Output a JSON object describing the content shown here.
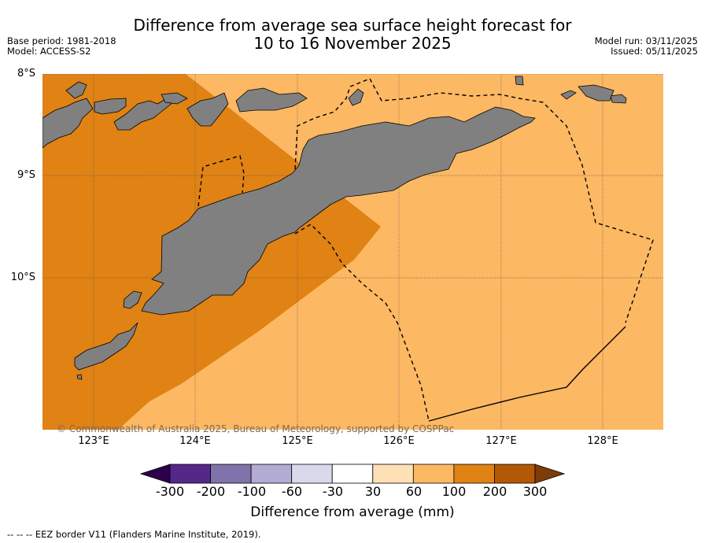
{
  "title": {
    "line1": "Difference from average sea surface height forecast for",
    "line2": "10 to 16 November 2025"
  },
  "meta_left": {
    "base_period": "Base period: 1981-2018",
    "model": "Model: ACCESS-S2"
  },
  "meta_right": {
    "model_run": "Model run: 03/11/2025",
    "issued": "Issued: 05/11/2025"
  },
  "map": {
    "lat_labels": [
      "8°S",
      "9°S",
      "10°S"
    ],
    "lon_labels": [
      "123°E",
      "124°E",
      "125°E",
      "126°E",
      "127°E",
      "128°E"
    ],
    "copyright": "© Commonwealth of Australia 2025, Bureau of Meteorology, supported by COSPPac",
    "regions": [
      {
        "name": "west-anomaly-zone",
        "category": "100 to 200",
        "color": "#e08214"
      },
      {
        "name": "east-anomaly-zone",
        "category": "60 to 100",
        "color": "#fdb863"
      }
    ],
    "land_color": "#808080"
  },
  "colorbar": {
    "ticks": [
      "-300",
      "-200",
      "-100",
      "-60",
      "-30",
      "30",
      "60",
      "100",
      "200",
      "300"
    ],
    "colors": [
      "#2d004b",
      "#542788",
      "#8073ac",
      "#b2abd2",
      "#d8daeb",
      "#ffffff",
      "#fee0b6",
      "#fdb863",
      "#e08214",
      "#b35806",
      "#7f3b08"
    ],
    "label": "Difference from average (mm)"
  },
  "legend_note": "--  --  -- EEZ border V11 (Flanders Marine Institute, 2019)."
}
